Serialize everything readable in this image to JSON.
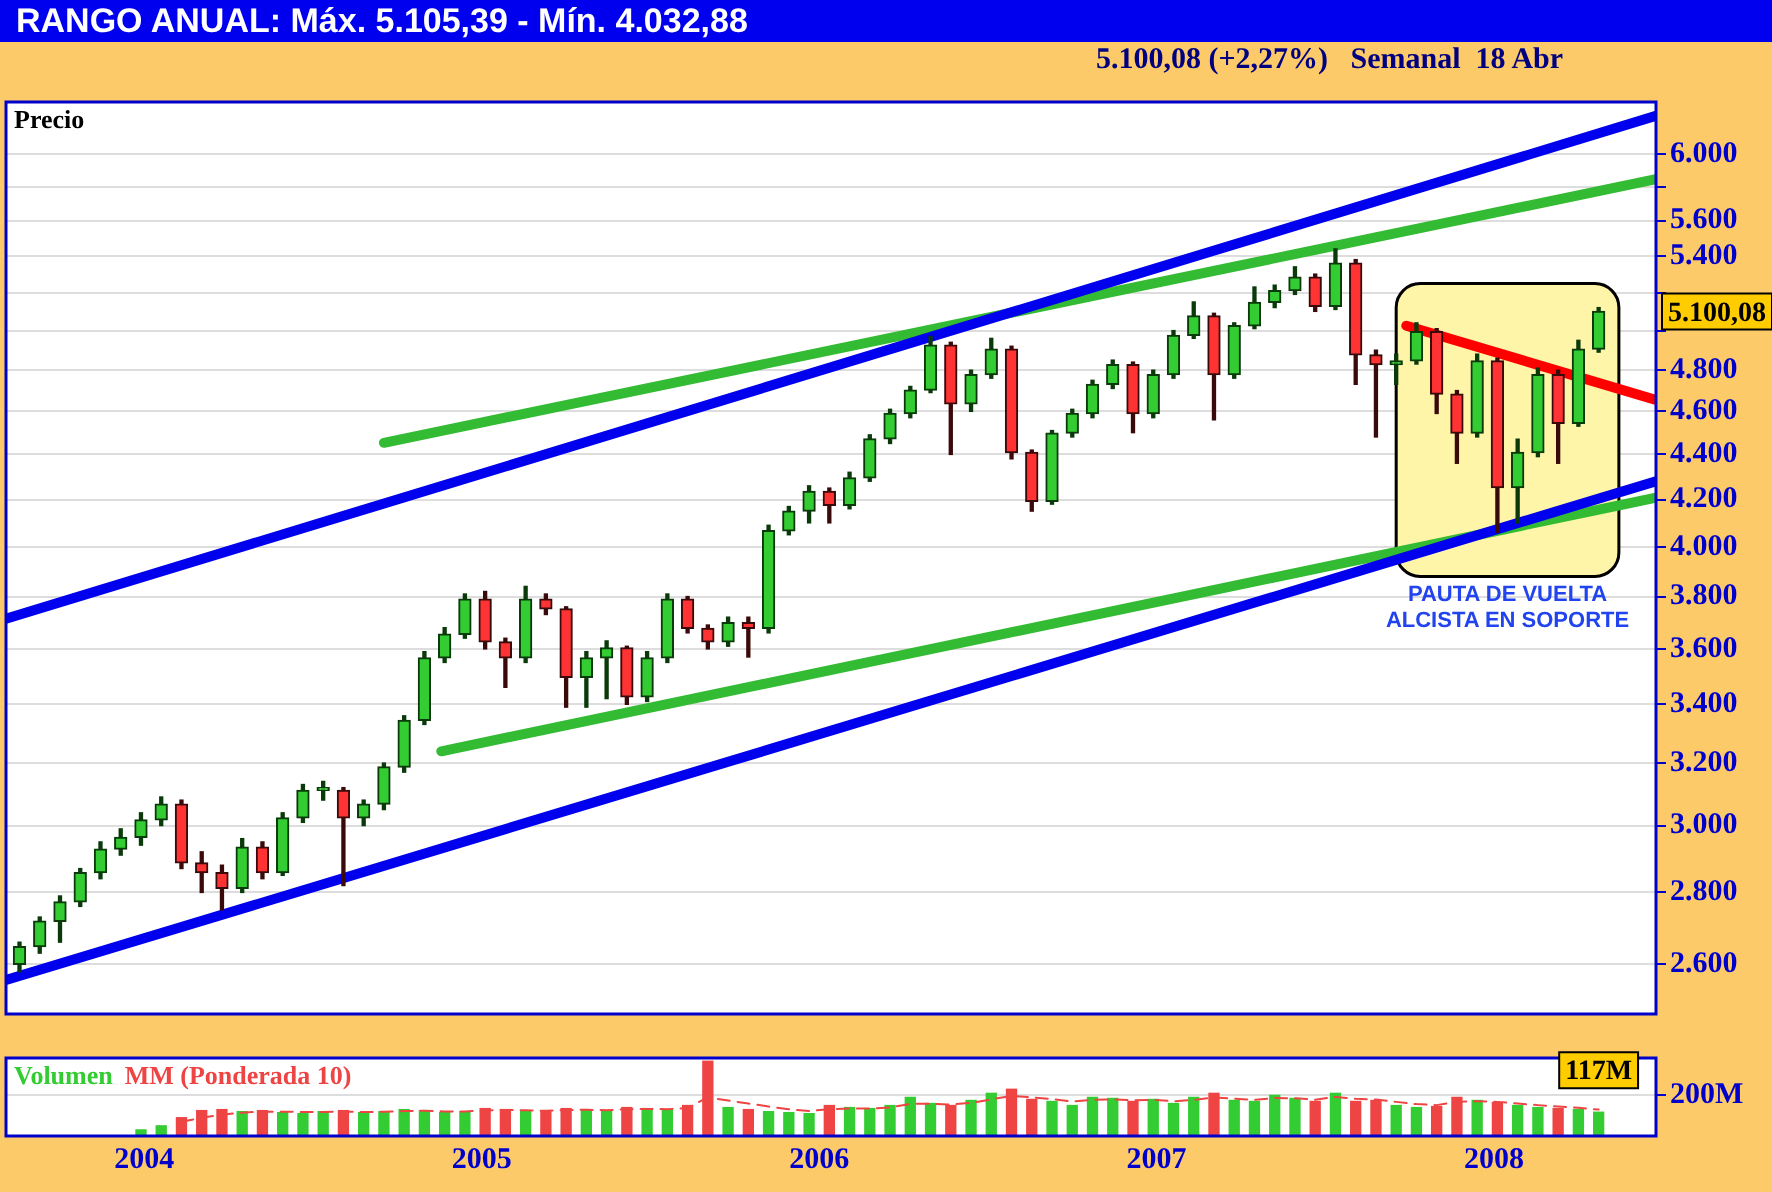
{
  "chart_data": [
    {
      "type": "candlestick",
      "title": "RANGO ANUAL: Máx. 5.105,39 - Mín. 4.032,88",
      "subtitle": "5.100,08 (+2,27%)   Semanal  18 Abr",
      "x": [
        2003.63,
        2003.69,
        2003.75,
        2003.81,
        2003.87,
        2003.93,
        2003.99,
        2004.05,
        2004.11,
        2004.17,
        2004.23,
        2004.29,
        2004.35,
        2004.41,
        2004.47,
        2004.53,
        2004.59,
        2004.65,
        2004.71,
        2004.77,
        2004.83,
        2004.89,
        2004.95,
        2005.01,
        2005.07,
        2005.13,
        2005.19,
        2005.25,
        2005.31,
        2005.37,
        2005.43,
        2005.49,
        2005.55,
        2005.61,
        2005.67,
        2005.73,
        2005.79,
        2005.85,
        2005.91,
        2005.97,
        2006.03,
        2006.09,
        2006.15,
        2006.21,
        2006.27,
        2006.33,
        2006.39,
        2006.45,
        2006.51,
        2006.57,
        2006.63,
        2006.69,
        2006.75,
        2006.81,
        2006.87,
        2006.93,
        2006.99,
        2007.05,
        2007.11,
        2007.17,
        2007.23,
        2007.29,
        2007.35,
        2007.41,
        2007.47,
        2007.53,
        2007.59,
        2007.65,
        2007.71,
        2007.77,
        2007.83,
        2007.89,
        2007.95,
        2008.01,
        2008.07,
        2008.13,
        2008.19,
        2008.25,
        2008.31
      ],
      "ohlc": [
        [
          2600,
          2660,
          2580,
          2648
        ],
        [
          2648,
          2730,
          2630,
          2718
        ],
        [
          2718,
          2790,
          2660,
          2773
        ],
        [
          2773,
          2870,
          2760,
          2858
        ],
        [
          2858,
          2950,
          2840,
          2928
        ],
        [
          2928,
          2990,
          2910,
          2964
        ],
        [
          2964,
          3040,
          2940,
          3018
        ],
        [
          3018,
          3090,
          3000,
          3067
        ],
        [
          3067,
          3080,
          2870,
          2887
        ],
        [
          2887,
          2920,
          2800,
          2858
        ],
        [
          2858,
          2880,
          2750,
          2812
        ],
        [
          2812,
          2960,
          2800,
          2934
        ],
        [
          2934,
          2950,
          2840,
          2858
        ],
        [
          2858,
          3040,
          2850,
          3024
        ],
        [
          3024,
          3130,
          3010,
          3111
        ],
        [
          3111,
          3140,
          3080,
          3120
        ],
        [
          3111,
          3120,
          2820,
          3024
        ],
        [
          3024,
          3080,
          3000,
          3067
        ],
        [
          3067,
          3200,
          3050,
          3187
        ],
        [
          3187,
          3360,
          3170,
          3344
        ],
        [
          3344,
          3590,
          3330,
          3567
        ],
        [
          3567,
          3680,
          3550,
          3655
        ],
        [
          3655,
          3810,
          3640,
          3790
        ],
        [
          3790,
          3820,
          3600,
          3626
        ],
        [
          3626,
          3640,
          3460,
          3567
        ],
        [
          3567,
          3840,
          3550,
          3790
        ],
        [
          3790,
          3810,
          3730,
          3752
        ],
        [
          3752,
          3760,
          3390,
          3496
        ],
        [
          3496,
          3590,
          3390,
          3567
        ],
        [
          3567,
          3630,
          3420,
          3604
        ],
        [
          3604,
          3610,
          3400,
          3426
        ],
        [
          3426,
          3590,
          3410,
          3567
        ],
        [
          3567,
          3810,
          3550,
          3790
        ],
        [
          3790,
          3800,
          3660,
          3677
        ],
        [
          3677,
          3690,
          3600,
          3626
        ],
        [
          3626,
          3720,
          3610,
          3699
        ],
        [
          3699,
          3720,
          3570,
          3677
        ],
        [
          3677,
          4090,
          3660,
          4067
        ],
        [
          4067,
          4170,
          4050,
          4150
        ],
        [
          4150,
          4260,
          4100,
          4235
        ],
        [
          4235,
          4250,
          4100,
          4175
        ],
        [
          4175,
          4320,
          4160,
          4295
        ],
        [
          4295,
          4490,
          4280,
          4471
        ],
        [
          4471,
          4610,
          4450,
          4590
        ],
        [
          4590,
          4720,
          4570,
          4702
        ],
        [
          4702,
          4970,
          4690,
          4925
        ],
        [
          4925,
          4940,
          4400,
          4636
        ],
        [
          4636,
          4800,
          4600,
          4778
        ],
        [
          4778,
          4960,
          4760,
          4905
        ],
        [
          4905,
          4920,
          4380,
          4409
        ],
        [
          4409,
          4420,
          4150,
          4192
        ],
        [
          4192,
          4510,
          4180,
          4498
        ],
        [
          4498,
          4610,
          4480,
          4590
        ],
        [
          4590,
          4750,
          4570,
          4730
        ],
        [
          4730,
          4850,
          4710,
          4827
        ],
        [
          4827,
          4840,
          4500,
          4590
        ],
        [
          4590,
          4800,
          4570,
          4778
        ],
        [
          4778,
          5000,
          4760,
          4975
        ],
        [
          4975,
          5150,
          4960,
          5076
        ],
        [
          5076,
          5090,
          4560,
          4778
        ],
        [
          4778,
          5040,
          4760,
          5025
        ],
        [
          5025,
          5230,
          5010,
          5148
        ],
        [
          5148,
          5240,
          5120,
          5210
        ],
        [
          5210,
          5340,
          5190,
          5284
        ],
        [
          5284,
          5300,
          5100,
          5127
        ],
        [
          5127,
          5440,
          5110,
          5360
        ],
        [
          5360,
          5380,
          4730,
          4876
        ],
        [
          4876,
          4900,
          4480,
          4827
        ],
        [
          4827,
          4880,
          4730,
          4846
        ],
        [
          4846,
          5040,
          4830,
          4995
        ],
        [
          4995,
          5010,
          4590,
          4683
        ],
        [
          4683,
          4700,
          4360,
          4498
        ],
        [
          4498,
          4880,
          4480,
          4846
        ],
        [
          4846,
          4860,
          4060,
          4252
        ],
        [
          4252,
          4470,
          4100,
          4409
        ],
        [
          4409,
          4810,
          4390,
          4778
        ],
        [
          4778,
          4800,
          4360,
          4544
        ],
        [
          4544,
          4950,
          4530,
          4905
        ],
        [
          4905,
          5120,
          4890,
          5100
        ]
      ],
      "series": [
        {
          "type": "line",
          "color": "#0000ee",
          "x": [
            2003.59,
            2008.48
          ],
          "values": [
            3714,
            6240
          ]
        },
        {
          "type": "line",
          "color": "#0000ee",
          "x": [
            2003.59,
            2008.48
          ],
          "values": [
            2558,
            4280
          ]
        },
        {
          "type": "line",
          "color": "#33bb33",
          "x": [
            2004.71,
            2008.48
          ],
          "values": [
            4453,
            5845
          ]
        },
        {
          "type": "line",
          "color": "#33bb33",
          "x": [
            2004.88,
            2008.48
          ],
          "values": [
            3239,
            4208
          ]
        },
        {
          "type": "line",
          "color": "#ff0000",
          "x": [
            2007.74,
            2008.48
          ],
          "values": [
            5025,
            4655
          ]
        }
      ],
      "bands": [
        {
          "axis": "x",
          "from": 2007.71,
          "to": 2008.37,
          "label": "PAUTA DE VUELTA ALCISTA EN SOPORTE",
          "color": "#fff5a8"
        }
      ],
      "annotations": [
        "Precio",
        {
          "text": "5.100,08",
          "x": 2008.31,
          "y": 5100
        }
      ],
      "xlim": [
        2003.59,
        2008.48
      ],
      "xticks": [
        2004,
        2005,
        2006,
        2007,
        2008
      ],
      "ylim": [
        2470,
        6330
      ],
      "log": true,
      "yticks": [
        {
          "value": 2600,
          "label": "2.600"
        },
        {
          "value": 2800,
          "label": "2.800"
        },
        {
          "value": 3000,
          "label": "3.000"
        },
        {
          "value": 3200,
          "label": "3.200"
        },
        {
          "value": 3400,
          "label": "3.400"
        },
        {
          "value": 3600,
          "label": "3.600"
        },
        {
          "value": 3800,
          "label": "3.800"
        },
        {
          "value": 4000,
          "label": "4.000"
        },
        {
          "value": 4200,
          "label": "4.200"
        },
        {
          "value": 4400,
          "label": "4.400"
        },
        {
          "value": 4600,
          "label": "4.600"
        },
        {
          "value": 4800,
          "label": "4.800"
        },
        {
          "value": 5000,
          "label": null
        },
        {
          "value": 5200,
          "label": null
        },
        {
          "value": 5400,
          "label": "5.400"
        },
        {
          "value": 5600,
          "label": "5.600"
        },
        {
          "value": 5800,
          "label": null
        },
        {
          "value": 6000,
          "label": "6.000"
        }
      ],
      "grid": "y",
      "tick_labels": "y"
    },
    {
      "type": "bar",
      "x": [
        2003.99,
        2004.05,
        2004.11,
        2004.17,
        2004.23,
        2004.29,
        2004.35,
        2004.41,
        2004.47,
        2004.53,
        2004.59,
        2004.65,
        2004.71,
        2004.77,
        2004.83,
        2004.89,
        2004.95,
        2005.01,
        2005.07,
        2005.13,
        2005.19,
        2005.25,
        2005.31,
        2005.37,
        2005.43,
        2005.49,
        2005.55,
        2005.61,
        2005.67,
        2005.73,
        2005.79,
        2005.85,
        2005.91,
        2005.97,
        2006.03,
        2006.09,
        2006.15,
        2006.21,
        2006.27,
        2006.33,
        2006.39,
        2006.45,
        2006.51,
        2006.57,
        2006.63,
        2006.69,
        2006.75,
        2006.81,
        2006.87,
        2006.93,
        2006.99,
        2007.05,
        2007.11,
        2007.17,
        2007.23,
        2007.29,
        2007.35,
        2007.41,
        2007.47,
        2007.53,
        2007.59,
        2007.65,
        2007.71,
        2007.77,
        2007.83,
        2007.89,
        2007.95,
        2008.01,
        2008.07,
        2008.13,
        2008.19,
        2008.25,
        2008.31
      ],
      "series": [
        {
          "name": "Volumen",
          "color": "#33cc33",
          "values": [
            30,
            50,
            90,
            125,
            130,
            120,
            125,
            115,
            110,
            120,
            125,
            115,
            120,
            130,
            125,
            115,
            120,
            135,
            130,
            125,
            120,
            135,
            130,
            125,
            140,
            135,
            130,
            150,
            368,
            140,
            130,
            120,
            115,
            110,
            150,
            140,
            135,
            150,
            190,
            160,
            150,
            175,
            210,
            230,
            180,
            170,
            150,
            190,
            185,
            170,
            180,
            160,
            190,
            210,
            175,
            170,
            200,
            185,
            170,
            210,
            170,
            175,
            150,
            140,
            145,
            190,
            175,
            165,
            150,
            140,
            135,
            130,
            117
          ],
          "colors": [
            "#33cc33",
            "#33cc33",
            "#ee4444",
            "#ee4444",
            "#ee4444",
            "#33cc33",
            "#ee4444",
            "#33cc33",
            "#33cc33",
            "#33cc33",
            "#ee4444",
            "#33cc33",
            "#33cc33",
            "#33cc33",
            "#33cc33",
            "#33cc33",
            "#33cc33",
            "#ee4444",
            "#ee4444",
            "#33cc33",
            "#ee4444",
            "#ee4444",
            "#33cc33",
            "#33cc33",
            "#ee4444",
            "#33cc33",
            "#33cc33",
            "#ee4444",
            "#ee4444",
            "#33cc33",
            "#ee4444",
            "#33cc33",
            "#33cc33",
            "#33cc33",
            "#ee4444",
            "#33cc33",
            "#33cc33",
            "#33cc33",
            "#33cc33",
            "#33cc33",
            "#ee4444",
            "#33cc33",
            "#33cc33",
            "#ee4444",
            "#ee4444",
            "#33cc33",
            "#33cc33",
            "#33cc33",
            "#33cc33",
            "#ee4444",
            "#33cc33",
            "#33cc33",
            "#33cc33",
            "#ee4444",
            "#33cc33",
            "#33cc33",
            "#33cc33",
            "#33cc33",
            "#ee4444",
            "#33cc33",
            "#ee4444",
            "#ee4444",
            "#33cc33",
            "#33cc33",
            "#ee4444",
            "#ee4444",
            "#33cc33",
            "#ee4444",
            "#33cc33",
            "#33cc33",
            "#ee4444",
            "#33cc33",
            "#33cc33"
          ],
          "value_labels": [
            null,
            null,
            null,
            null,
            null,
            null,
            null,
            null,
            null,
            null,
            null,
            null,
            null,
            null,
            null,
            null,
            null,
            null,
            null,
            null,
            null,
            null,
            null,
            null,
            null,
            null,
            null,
            null,
            null,
            null,
            null,
            null,
            null,
            null,
            null,
            null,
            null,
            null,
            null,
            null,
            null,
            null,
            null,
            null,
            null,
            null,
            null,
            null,
            null,
            null,
            null,
            null,
            null,
            null,
            null,
            null,
            null,
            null,
            null,
            null,
            null,
            null,
            null,
            null,
            null,
            null,
            null,
            null,
            null,
            null,
            null,
            null,
            "117M"
          ]
        },
        {
          "name": "MM (Ponderada 10)",
          "type": "line",
          "color": "#ee4444",
          "line_style": "dashed",
          "marker": "none",
          "values": [
            null,
            null,
            70,
            90,
            105,
            115,
            120,
            120,
            118,
            118,
            120,
            118,
            119,
            123,
            124,
            121,
            121,
            126,
            128,
            127,
            124,
            128,
            129,
            127,
            132,
            133,
            132,
            138,
            190,
            175,
            160,
            145,
            132,
            123,
            132,
            135,
            135,
            140,
            158,
            159,
            155,
            163,
            180,
            198,
            190,
            182,
            170,
            178,
            180,
            176,
            178,
            171,
            178,
            190,
            184,
            178,
            187,
            186,
            179,
            192,
            183,
            180,
            168,
            157,
            152,
            168,
            171,
            168,
            160,
            152,
            145,
            139,
            130
          ]
        }
      ],
      "xlim": [
        2003.59,
        2008.48
      ],
      "xticks": [
        2004,
        2005,
        2006,
        2007,
        2008
      ],
      "ylim": [
        0,
        384
      ],
      "yticks": [
        {
          "value": 200,
          "label": "200M"
        }
      ],
      "grid": "y",
      "legend": "top left"
    }
  ]
}
